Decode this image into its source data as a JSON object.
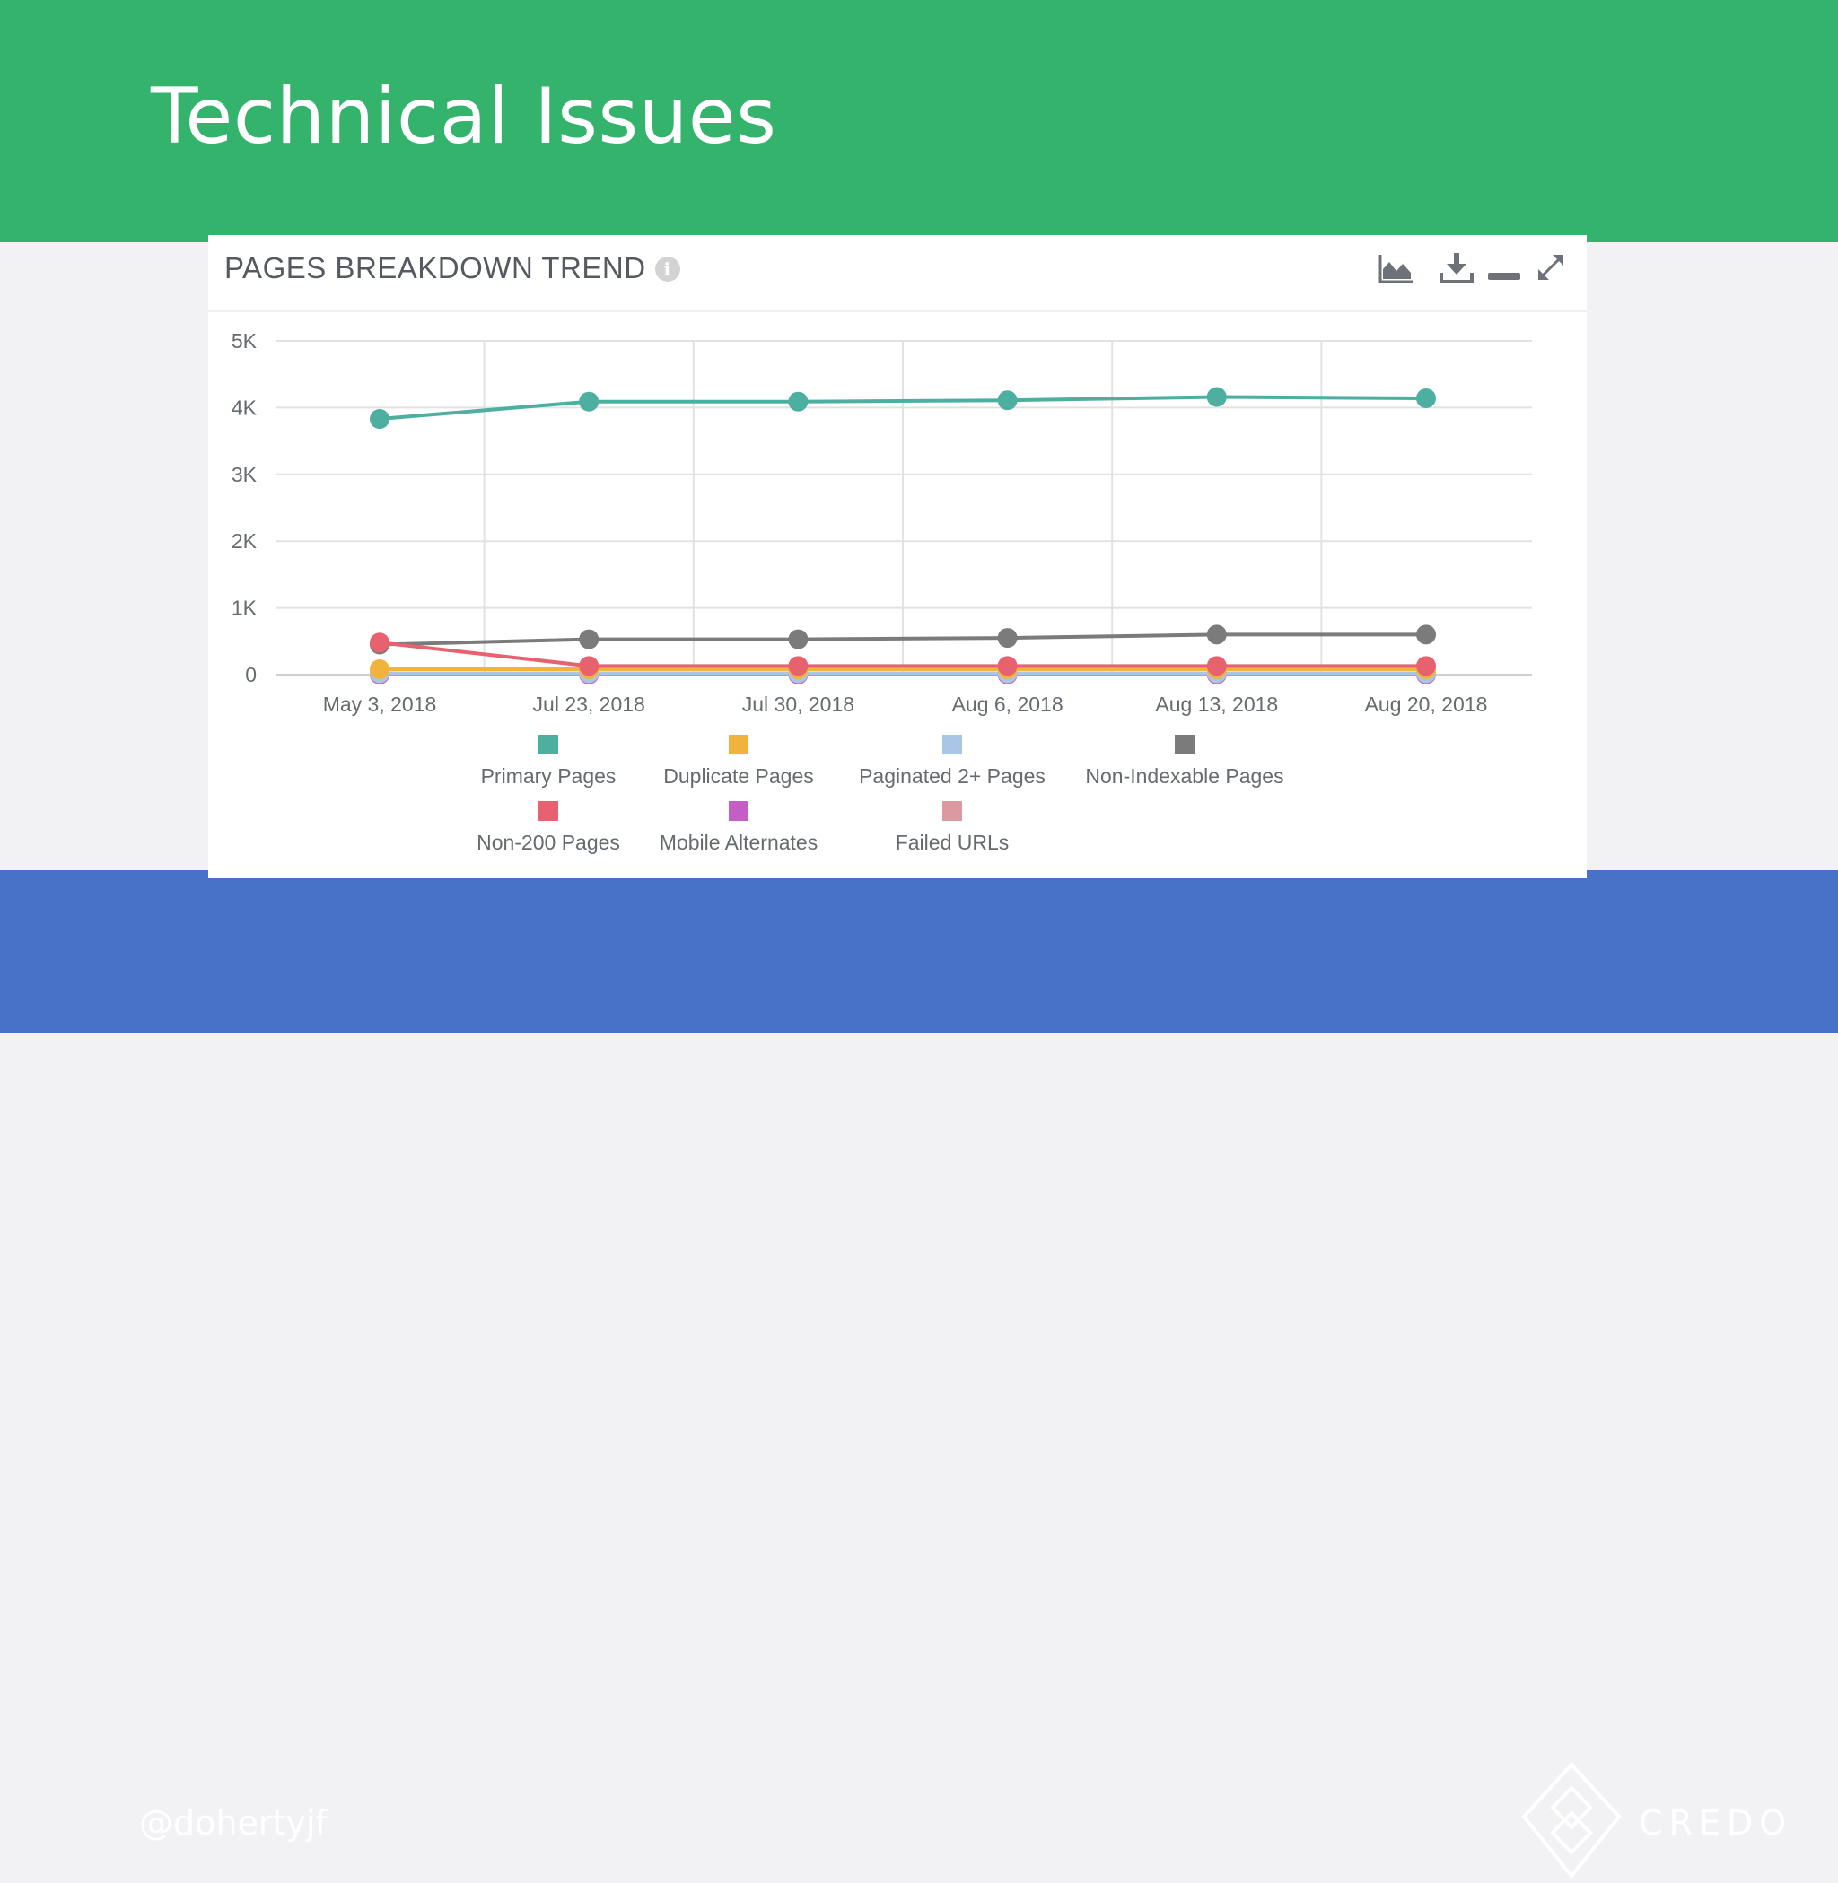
{
  "slide": {
    "title": "Technical Issues",
    "handle": "@dohertyjf",
    "brand": "CREDO"
  },
  "card": {
    "title": "PAGES BREAKDOWN TREND",
    "info_icon": "i",
    "toolbar": [
      "area-chart-icon",
      "download-icon",
      "minimize-icon",
      "expand-icon"
    ]
  },
  "colors": {
    "header": "#33b36b",
    "footer": "#4872c8",
    "grid": "#e2e2e2"
  },
  "chart_data": {
    "type": "line",
    "title": "PAGES BREAKDOWN TREND",
    "xlabel": "",
    "ylabel": "",
    "categories": [
      "May 3, 2018",
      "Jul 23, 2018",
      "Jul 30, 2018",
      "Aug 6, 2018",
      "Aug 13, 2018",
      "Aug 20, 2018"
    ],
    "yticks": [
      0,
      1000,
      2000,
      3000,
      4000,
      5000
    ],
    "ytick_labels": [
      "0",
      "1K",
      "2K",
      "3K",
      "4K",
      "5K"
    ],
    "ylim": [
      0,
      5000
    ],
    "grid": true,
    "legend_position": "bottom",
    "series": [
      {
        "name": "Primary Pages",
        "color": "#4daf9f",
        "values": [
          3830,
          4090,
          4090,
          4110,
          4160,
          4140
        ]
      },
      {
        "name": "Duplicate Pages",
        "color": "#f0b43c",
        "values": [
          80,
          80,
          80,
          80,
          80,
          80
        ]
      },
      {
        "name": "Paginated 2+ Pages",
        "color": "#a9c6e6",
        "values": [
          20,
          20,
          20,
          20,
          20,
          20
        ]
      },
      {
        "name": "Non-Indexable Pages",
        "color": "#7b7b7b",
        "values": [
          450,
          530,
          530,
          550,
          600,
          600
        ]
      },
      {
        "name": "Non-200 Pages",
        "color": "#e8616f",
        "values": [
          480,
          130,
          130,
          130,
          130,
          130
        ]
      },
      {
        "name": "Mobile Alternates",
        "color": "#c45ec4",
        "values": [
          5,
          5,
          5,
          5,
          5,
          5
        ]
      },
      {
        "name": "Failed URLs",
        "color": "#dc9aa0",
        "values": [
          0,
          0,
          0,
          0,
          0,
          0
        ]
      }
    ]
  }
}
